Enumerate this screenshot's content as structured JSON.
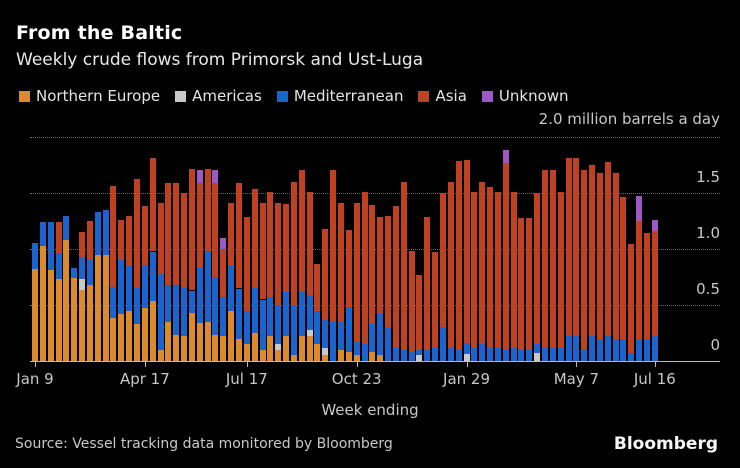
{
  "header": {
    "title": "From the Baltic",
    "subtitle": "Weekly crude flows from Primorsk and Ust-Luga"
  },
  "legend": [
    {
      "label": "Northern Europe",
      "color": "#DB8B2D"
    },
    {
      "label": "Americas",
      "color": "#C9C9C9"
    },
    {
      "label": "Mediterranean",
      "color": "#1C63CE"
    },
    {
      "label": "Asia",
      "color": "#BE4122"
    },
    {
      "label": "Unknown",
      "color": "#9C59C4"
    }
  ],
  "axis_note": "2.0 million barrels a day",
  "y_axis": {
    "ticks": [
      "0",
      "0.5",
      "1.0",
      "1.5"
    ],
    "tick_values": [
      0,
      0.5,
      1.0,
      1.5
    ],
    "gridline_values": [
      0.5,
      1.0,
      1.5,
      2.0
    ]
  },
  "x_axis": {
    "label": "Week ending",
    "tick_labels": [
      "Jan 9",
      "Apr 17",
      "Jul 17",
      "Oct 23",
      "Jan 29",
      "May 7",
      "Jul 16"
    ]
  },
  "footer": {
    "source": "Source: Vessel tracking data monitored by Bloomberg",
    "logo": "Bloomberg"
  },
  "chart_data": {
    "type": "bar",
    "stacked": true,
    "title": "From the Baltic",
    "subtitle": "Weekly crude flows from Primorsk and Ust-Luga",
    "xlabel": "Week ending",
    "ylabel": "million barrels a day",
    "ylim": [
      0,
      2.0
    ],
    "grid": "dotted-horizontal",
    "legend_position": "top",
    "x_tick_labels": [
      "Jan 9",
      "Apr 17",
      "Jul 17",
      "Oct 23",
      "Jan 29",
      "May 7",
      "Jul 16"
    ],
    "x_tick_indices": [
      0,
      14,
      27,
      41,
      55,
      69,
      79
    ],
    "series": [
      {
        "name": "Northern Europe",
        "color": "#DB8B2D",
        "values": [
          0.82,
          1.03,
          0.81,
          0.73,
          1.08,
          0.74,
          0.63,
          0.68,
          0.95,
          0.95,
          0.38,
          0.42,
          0.45,
          0.33,
          0.47,
          0.54,
          0.1,
          0.35,
          0.23,
          0.22,
          0.43,
          0.34,
          0.35,
          0.23,
          0.22,
          0.45,
          0.2,
          0.15,
          0.25,
          0.1,
          0.22,
          0.1,
          0.22,
          0.05,
          0.22,
          0.22,
          0.15,
          0.05,
          0,
          0.1,
          0.08,
          0.05,
          0,
          0.08,
          0.05,
          0,
          0,
          0,
          0,
          0,
          0,
          0,
          0,
          0,
          0,
          0,
          0,
          0,
          0,
          0,
          0,
          0,
          0,
          0,
          0,
          0,
          0,
          0,
          0,
          0,
          0,
          0,
          0,
          0,
          0,
          0,
          0,
          0,
          0,
          0
        ]
      },
      {
        "name": "Americas",
        "color": "#C9C9C9",
        "values": [
          0,
          0,
          0,
          0,
          0,
          0,
          0.1,
          0,
          0,
          0,
          0,
          0,
          0,
          0,
          0,
          0,
          0,
          0,
          0,
          0,
          0,
          0,
          0,
          0,
          0,
          0,
          0,
          0,
          0,
          0,
          0,
          0.05,
          0,
          0,
          0,
          0.06,
          0,
          0.07,
          0,
          0,
          0,
          0,
          0,
          0,
          0,
          0,
          0,
          0,
          0,
          0.05,
          0,
          0,
          0,
          0,
          0,
          0.06,
          0,
          0,
          0,
          0,
          0,
          0,
          0,
          0,
          0.07,
          0,
          0,
          0,
          0,
          0,
          0,
          0,
          0,
          0,
          0,
          0,
          0,
          0,
          0,
          0
        ]
      },
      {
        "name": "Mediterranean",
        "color": "#1C63CE",
        "values": [
          0.23,
          0.21,
          0.43,
          0.23,
          0.21,
          0.09,
          0.2,
          0.22,
          0.38,
          0.4,
          0.28,
          0.48,
          0.4,
          0.32,
          0.39,
          0.44,
          0.68,
          0.33,
          0.45,
          0.43,
          0.2,
          0.49,
          0.63,
          0.52,
          0.35,
          0.4,
          0.45,
          0.3,
          0.4,
          0.45,
          0.35,
          0.35,
          0.4,
          0.45,
          0.4,
          0.3,
          0.3,
          0.25,
          0.35,
          0.25,
          0.4,
          0.12,
          0.15,
          0.25,
          0.38,
          0.3,
          0.12,
          0.1,
          0.08,
          0.05,
          0.1,
          0.12,
          0.3,
          0.12,
          0.1,
          0.1,
          0.12,
          0.15,
          0.12,
          0.12,
          0.1,
          0.12,
          0.1,
          0.1,
          0.08,
          0.12,
          0.12,
          0.12,
          0.22,
          0.22,
          0.1,
          0.22,
          0.2,
          0.22,
          0.2,
          0.2,
          0.07,
          0.2,
          0.2,
          0.22
        ]
      },
      {
        "name": "Asia",
        "color": "#BE4122",
        "values": [
          0,
          0,
          0,
          0.28,
          0,
          0,
          0.22,
          0.35,
          0,
          0,
          0.9,
          0.36,
          0.45,
          0.97,
          0.53,
          0.83,
          0.63,
          0.91,
          0.91,
          0.85,
          1.08,
          0.76,
          0.73,
          0.84,
          0.43,
          0.56,
          0.94,
          0.84,
          0.88,
          0.86,
          0.94,
          0.91,
          0.79,
          1.1,
          1.09,
          0.93,
          0.42,
          0.81,
          1.36,
          1.06,
          0.69,
          1.24,
          1.36,
          1.06,
          0.86,
          0.99,
          1.27,
          1.5,
          0.9,
          0.67,
          1.19,
          0.86,
          1.2,
          1.48,
          1.69,
          1.63,
          1.39,
          1.45,
          1.44,
          1.39,
          1.67,
          1.39,
          1.18,
          1.18,
          1.35,
          1.59,
          1.59,
          1.39,
          1.59,
          1.59,
          1.61,
          1.53,
          1.48,
          1.55,
          1.48,
          1.27,
          0.97,
          1.05,
          0.95,
          0.94
        ]
      },
      {
        "name": "Unknown",
        "color": "#9C59C4",
        "values": [
          0,
          0,
          0,
          0,
          0,
          0,
          0,
          0,
          0,
          0,
          0,
          0,
          0,
          0,
          0,
          0,
          0,
          0,
          0,
          0,
          0,
          0.12,
          0,
          0.12,
          0.1,
          0,
          0,
          0,
          0,
          0,
          0,
          0,
          0,
          0,
          0,
          0,
          0,
          0,
          0,
          0,
          0,
          0,
          0,
          0,
          0,
          0,
          0,
          0,
          0,
          0,
          0,
          0,
          0,
          0,
          0,
          0,
          0,
          0,
          0,
          0,
          0.12,
          0,
          0,
          0,
          0,
          0,
          0,
          0,
          0,
          0,
          0,
          0,
          0,
          0,
          0,
          0,
          0,
          0.22,
          0,
          0.1
        ]
      }
    ]
  }
}
